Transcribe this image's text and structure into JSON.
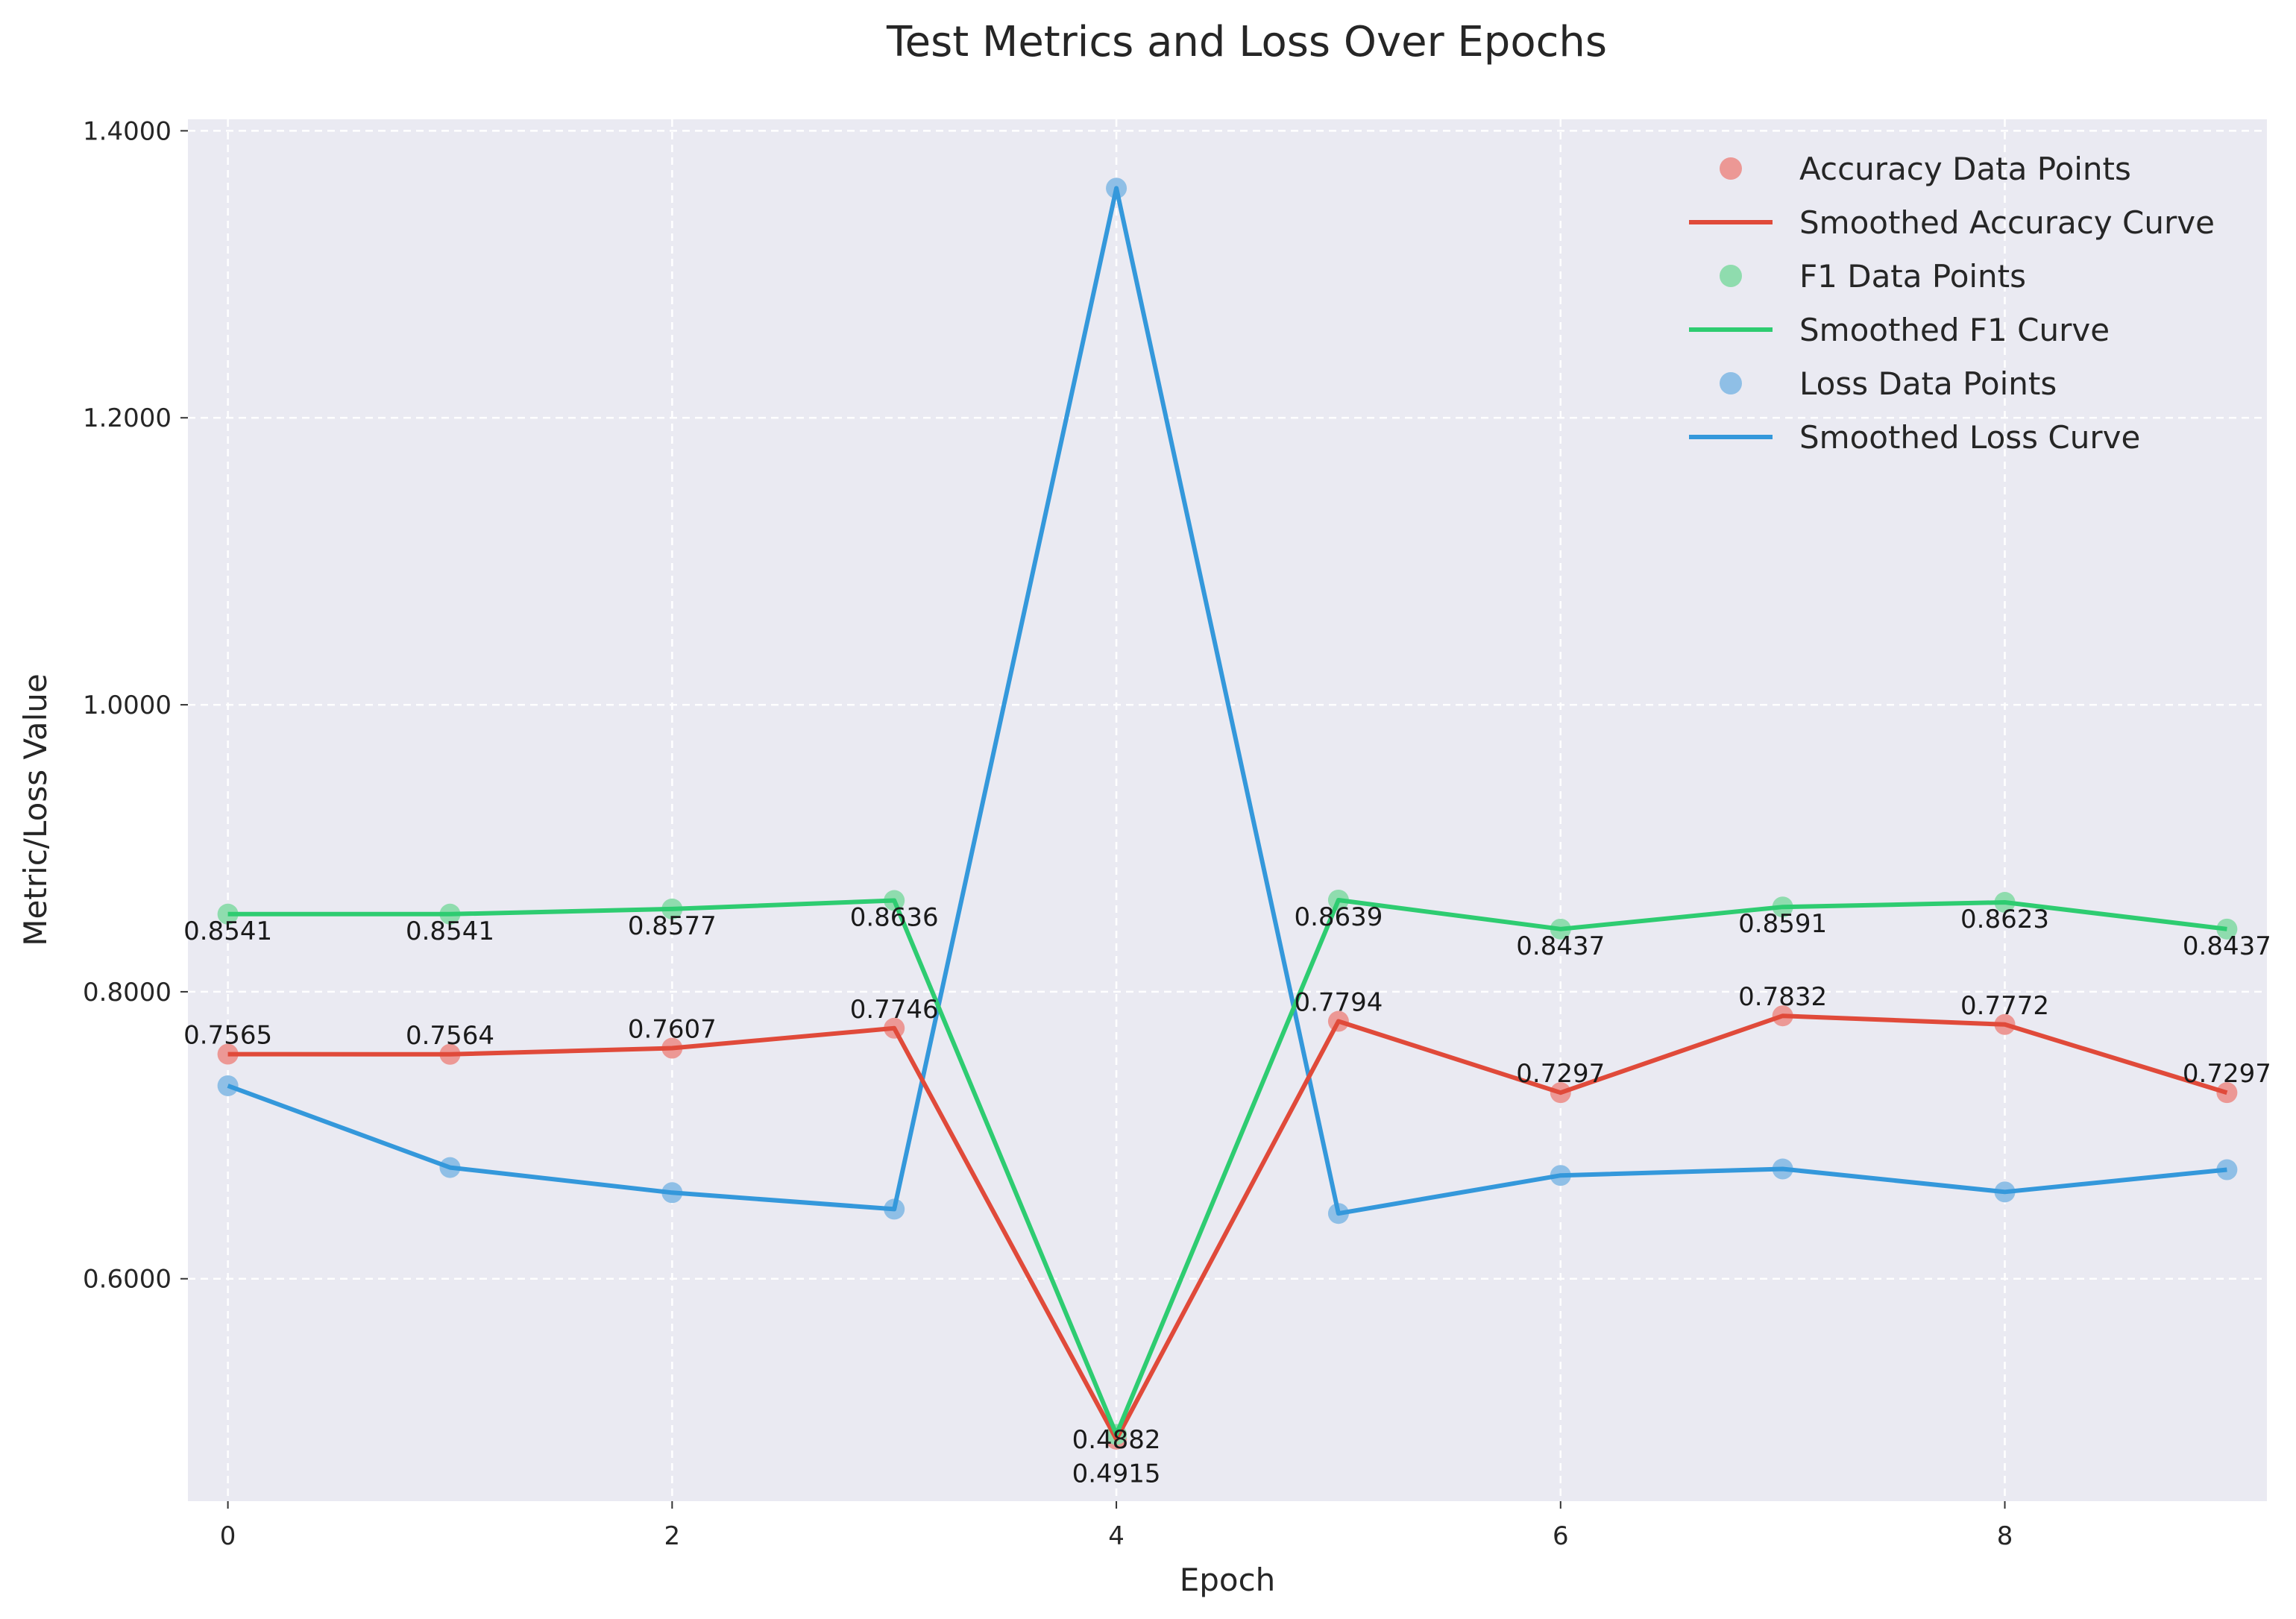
{
  "chart_data": {
    "type": "line",
    "title": "Test Metrics and Loss Over Epochs",
    "xlabel": "Epoch",
    "ylabel": "Metric/Loss Value",
    "x": [
      0,
      1,
      2,
      3,
      4,
      5,
      6,
      7,
      8,
      9
    ],
    "xticks": [
      0,
      2,
      4,
      6,
      8
    ],
    "xlim": [
      -0.18,
      9.18
    ],
    "yticks": [
      0.6,
      0.8,
      1.0,
      1.2,
      1.4
    ],
    "ylim": [
      0.445,
      1.408
    ],
    "grid": true,
    "legend_position": "top-right",
    "legend": [
      {
        "label": "Accuracy Data Points",
        "kind": "points",
        "series": "accuracy"
      },
      {
        "label": "Smoothed Accuracy Curve",
        "kind": "line",
        "series": "accuracy"
      },
      {
        "label": "F1 Data Points",
        "kind": "points",
        "series": "f1"
      },
      {
        "label": "Smoothed F1 Curve",
        "kind": "line",
        "series": "f1"
      },
      {
        "label": "Loss Data Points",
        "kind": "points",
        "series": "loss"
      },
      {
        "label": "Smoothed Loss Curve",
        "kind": "line",
        "series": "loss"
      }
    ],
    "series": [
      {
        "id": "accuracy",
        "values": [
          0.7565,
          0.7564,
          0.7607,
          0.7746,
          0.4882,
          0.7794,
          0.7297,
          0.7832,
          0.7772,
          0.7297
        ],
        "labels": [
          "0.7565",
          "0.7564",
          "0.7607",
          "0.7746",
          "0.4882",
          "0.7794",
          "0.7297",
          "0.7832",
          "0.7772",
          "0.7297"
        ],
        "line_color": "#e04a3a",
        "point_color": "#ec9895"
      },
      {
        "id": "f1",
        "values": [
          0.8541,
          0.8541,
          0.8577,
          0.8636,
          0.4915,
          0.8639,
          0.8437,
          0.8591,
          0.8623,
          0.8437
        ],
        "labels": [
          "0.8541",
          "0.8541",
          "0.8577",
          "0.8636",
          "0.4915",
          "0.8639",
          "0.8437",
          "0.8591",
          "0.8623",
          "0.8437"
        ],
        "line_color": "#2ecc71",
        "point_color": "#8fdcae"
      },
      {
        "id": "loss",
        "values": [
          0.7345,
          0.6775,
          0.66,
          0.6485,
          1.36,
          0.6455,
          0.672,
          0.6765,
          0.6605,
          0.676
        ],
        "labels": [],
        "line_color": "#3498db",
        "point_color": "#8fbfe6"
      }
    ]
  }
}
